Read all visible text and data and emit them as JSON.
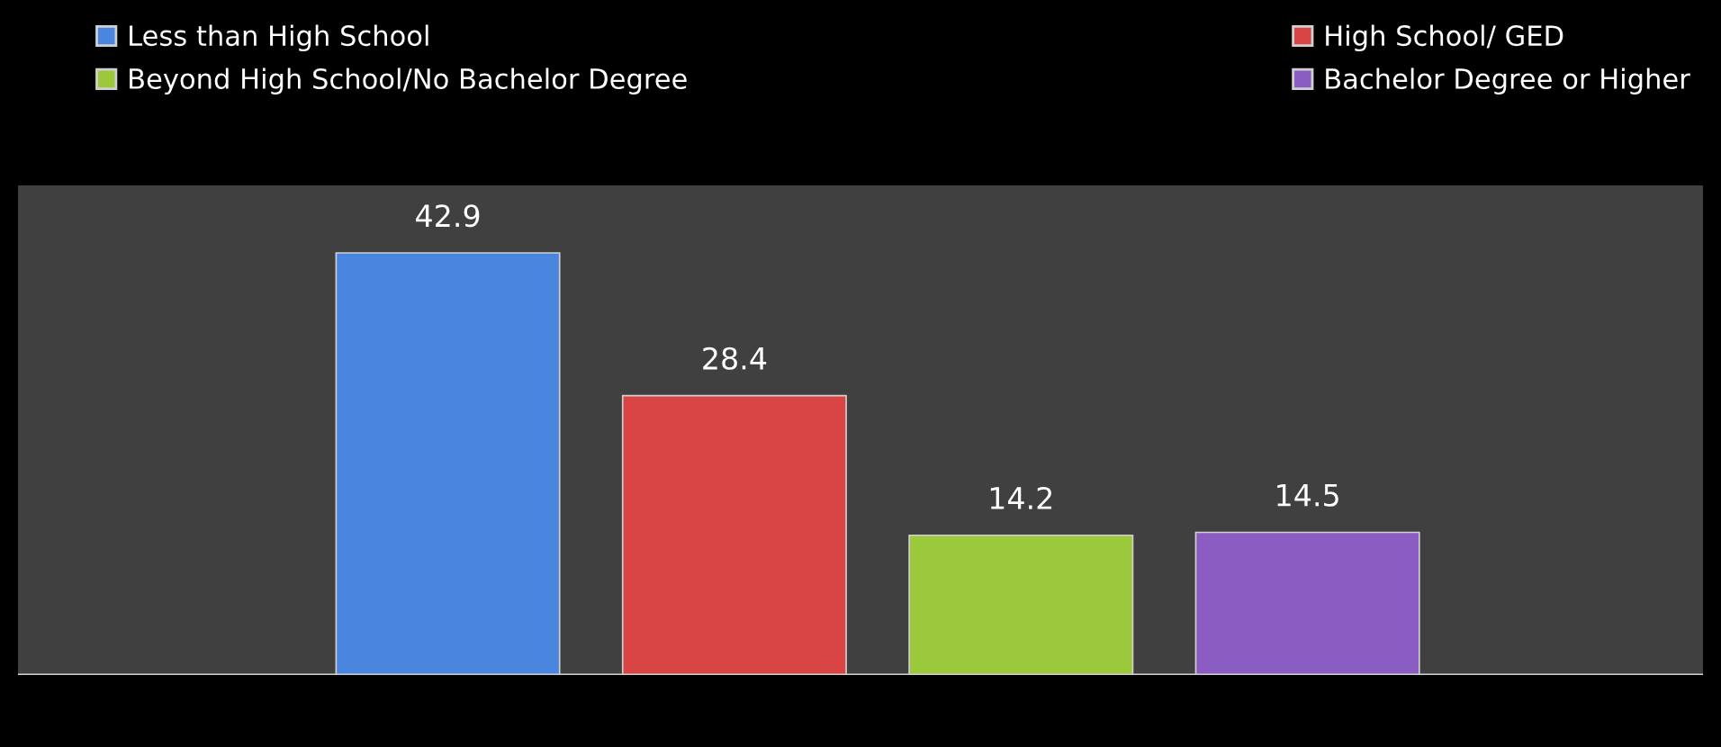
{
  "chart_data": {
    "type": "bar",
    "categories": [
      null
    ],
    "series": [
      {
        "name": "Less than High School",
        "color": "#4a86e0",
        "values": [
          42.9
        ]
      },
      {
        "name": "High School/ GED",
        "color": "#d94444",
        "values": [
          28.4
        ]
      },
      {
        "name": "Beyond High School/No Bachelor Degree",
        "color": "#9cc93c",
        "values": [
          14.2
        ]
      },
      {
        "name": "Bachelor Degree or Higher",
        "color": "#8b5cc2",
        "values": [
          14.5
        ]
      }
    ],
    "data_labels": true,
    "legend": "top",
    "grid": false
  }
}
